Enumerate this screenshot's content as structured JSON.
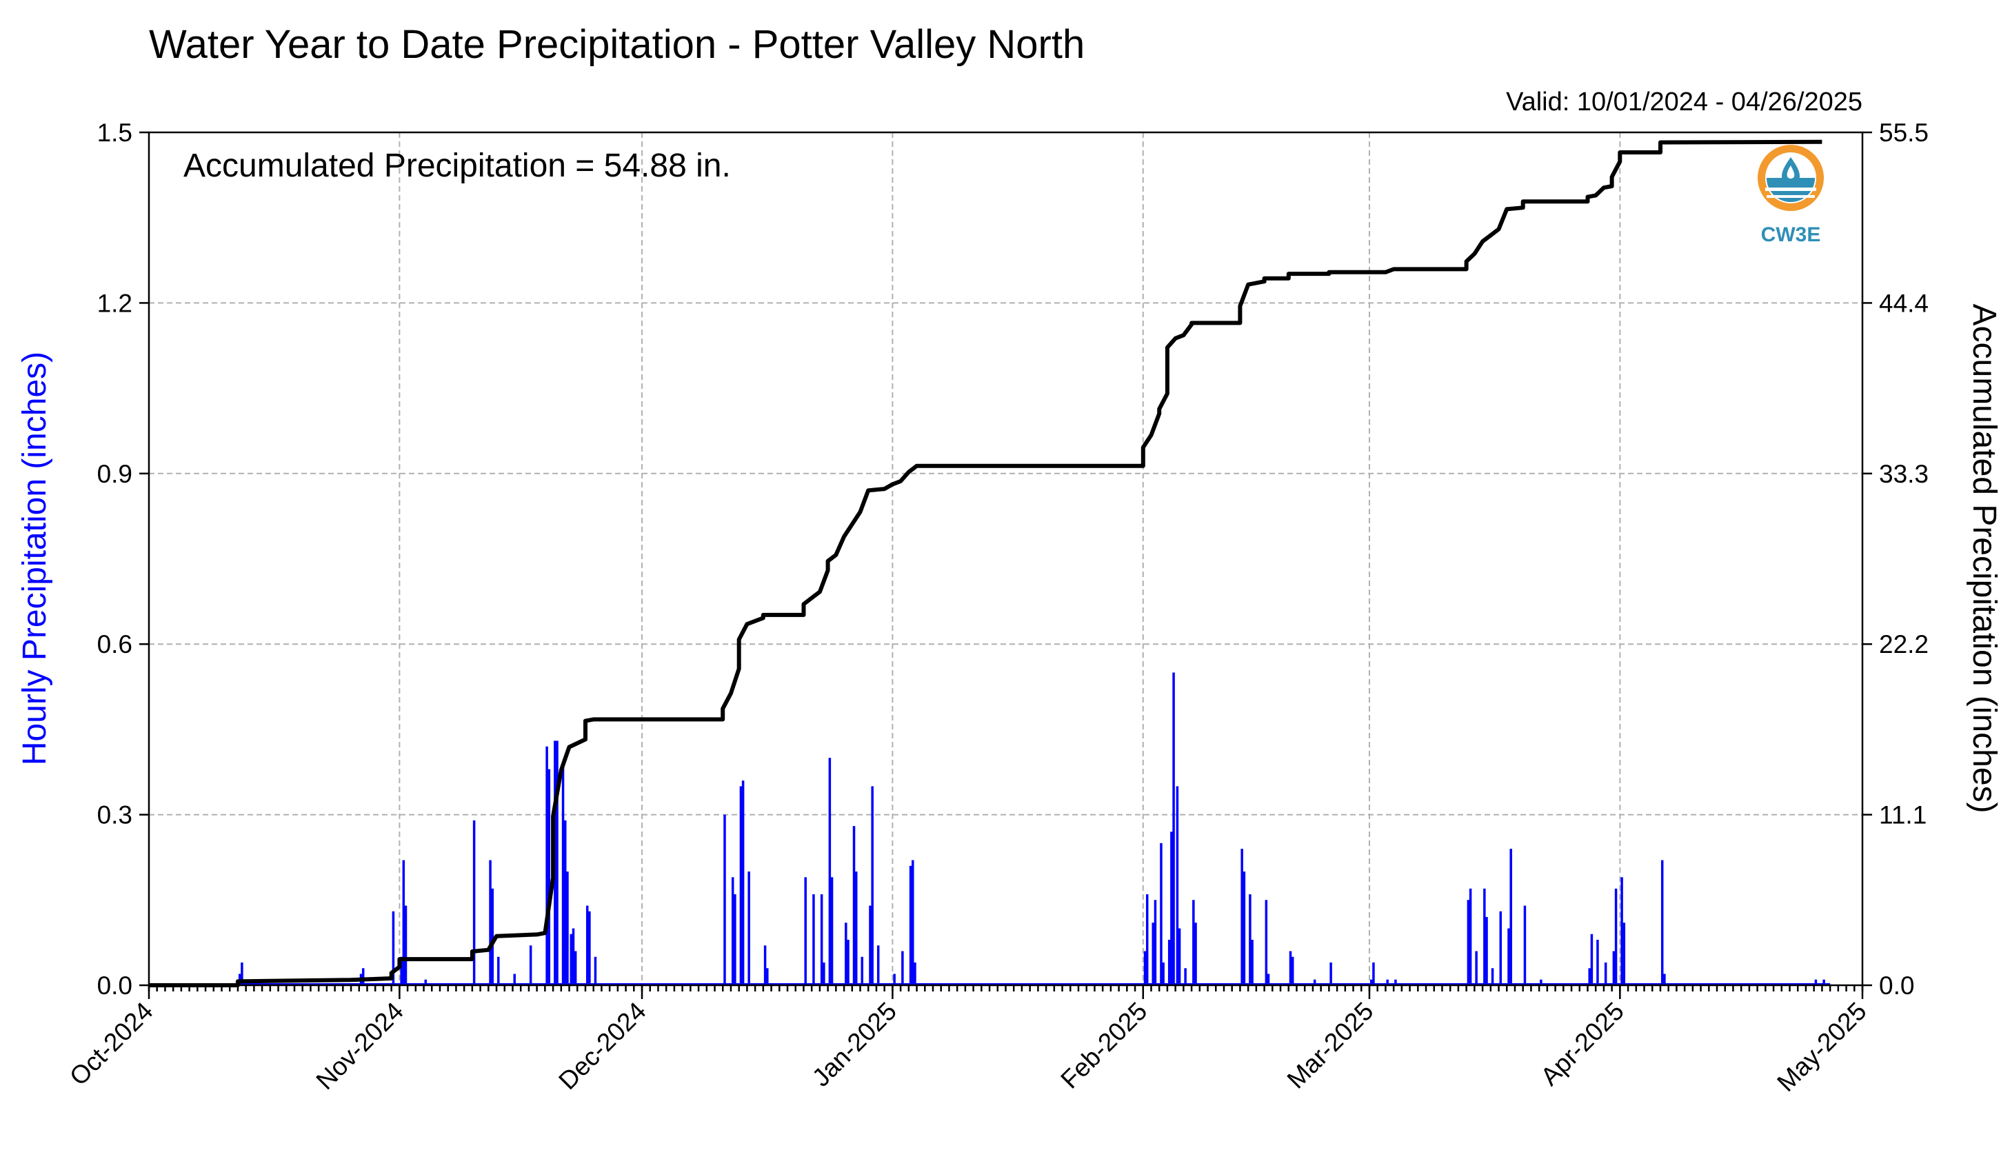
{
  "title": "Water Year to Date Precipitation - Potter Valley North",
  "valid": "Valid: 10/01/2024 - 04/26/2025",
  "annotation": "Accumulated Precipitation = 54.88 in.",
  "logo": {
    "text": "CW3E",
    "icon": "cw3e-logo-icon",
    "color": "#2f8fb6",
    "accent": "#f29a2e"
  },
  "colors": {
    "bars": "#0000ff",
    "line": "#000000",
    "left_axis_label": "#0000ff"
  },
  "chart_data": {
    "type": "bar",
    "title": "Water Year to Date Precipitation - Potter Valley North",
    "xlabel": "",
    "ylabel_left": "Hourly Precipitation (inches)",
    "ylabel_right": "Accumulated Precipitation (inches)",
    "x_range": [
      "2024-10-01",
      "2025-05-01"
    ],
    "x_ticks": [
      "Oct-2024",
      "Nov-2024",
      "Dec-2024",
      "Jan-2025",
      "Feb-2025",
      "Mar-2025",
      "Apr-2025",
      "May-2025"
    ],
    "x_tick_dates": [
      "2024-10-01",
      "2024-11-01",
      "2024-12-01",
      "2025-01-01",
      "2025-02-01",
      "2025-03-01",
      "2025-04-01",
      "2025-05-01"
    ],
    "ylim_left": [
      0,
      1.5
    ],
    "yticks_left": [
      "0.0",
      "0.3",
      "0.6",
      "0.9",
      "1.2",
      "1.5"
    ],
    "ylim_right": [
      0,
      55.5
    ],
    "yticks_right": [
      "0.0",
      "11.1",
      "22.2",
      "33.3",
      "44.4",
      "55.5"
    ],
    "grid": true,
    "series": [
      {
        "name": "Hourly Precipitation",
        "kind": "bar",
        "axis": "left",
        "points": [
          [
            "2024-10-12",
            0.02
          ],
          [
            "2024-10-12",
            0.04
          ],
          [
            "2024-10-27",
            0.02
          ],
          [
            "2024-10-27",
            0.03
          ],
          [
            "2024-10-31",
            0.13
          ],
          [
            "2024-11-01",
            0.05
          ],
          [
            "2024-11-01",
            0.22
          ],
          [
            "2024-11-01",
            0.14
          ],
          [
            "2024-11-04",
            0.01
          ],
          [
            "2024-11-10",
            0.29
          ],
          [
            "2024-11-12",
            0.22
          ],
          [
            "2024-11-12",
            0.17
          ],
          [
            "2024-11-13",
            0.05
          ],
          [
            "2024-11-15",
            0.02
          ],
          [
            "2024-11-17",
            0.07
          ],
          [
            "2024-11-19",
            0.42
          ],
          [
            "2024-11-19",
            0.38
          ],
          [
            "2024-11-20",
            0.43
          ],
          [
            "2024-11-20",
            0.43
          ],
          [
            "2024-11-21",
            0.39
          ],
          [
            "2024-11-21",
            0.29
          ],
          [
            "2024-11-21",
            0.2
          ],
          [
            "2024-11-22",
            0.09
          ],
          [
            "2024-11-22",
            0.1
          ],
          [
            "2024-11-22",
            0.06
          ],
          [
            "2024-11-24",
            0.14
          ],
          [
            "2024-11-24",
            0.13
          ],
          [
            "2024-11-25",
            0.05
          ],
          [
            "2024-12-11",
            0.3
          ],
          [
            "2024-12-12",
            0.19
          ],
          [
            "2024-12-12",
            0.16
          ],
          [
            "2024-12-13",
            0.35
          ],
          [
            "2024-12-13",
            0.36
          ],
          [
            "2024-12-14",
            0.2
          ],
          [
            "2024-12-16",
            0.07
          ],
          [
            "2024-12-16",
            0.03
          ],
          [
            "2024-12-21",
            0.19
          ],
          [
            "2024-12-22",
            0.16
          ],
          [
            "2024-12-23",
            0.16
          ],
          [
            "2024-12-23",
            0.04
          ],
          [
            "2024-12-24",
            0.4
          ],
          [
            "2024-12-24",
            0.19
          ],
          [
            "2024-12-26",
            0.11
          ],
          [
            "2024-12-26",
            0.08
          ],
          [
            "2024-12-27",
            0.28
          ],
          [
            "2024-12-27",
            0.2
          ],
          [
            "2024-12-28",
            0.05
          ],
          [
            "2024-12-29",
            0.14
          ],
          [
            "2024-12-29",
            0.35
          ],
          [
            "2024-12-30",
            0.07
          ],
          [
            "2025-01-01",
            0.02
          ],
          [
            "2025-01-02",
            0.06
          ],
          [
            "2025-01-03",
            0.21
          ],
          [
            "2025-01-03",
            0.22
          ],
          [
            "2025-01-03",
            0.04
          ],
          [
            "2025-02-01",
            0.06
          ],
          [
            "2025-02-01",
            0.16
          ],
          [
            "2025-02-02",
            0.11
          ],
          [
            "2025-02-02",
            0.15
          ],
          [
            "2025-02-03",
            0.25
          ],
          [
            "2025-02-03",
            0.04
          ],
          [
            "2025-02-04",
            0.08
          ],
          [
            "2025-02-04",
            0.27
          ],
          [
            "2025-02-04",
            0.55
          ],
          [
            "2025-02-05",
            0.35
          ],
          [
            "2025-02-05",
            0.1
          ],
          [
            "2025-02-06",
            0.03
          ],
          [
            "2025-02-07",
            0.15
          ],
          [
            "2025-02-07",
            0.11
          ],
          [
            "2025-02-13",
            0.24
          ],
          [
            "2025-02-13",
            0.2
          ],
          [
            "2025-02-14",
            0.16
          ],
          [
            "2025-02-14",
            0.08
          ],
          [
            "2025-02-16",
            0.15
          ],
          [
            "2025-02-16",
            0.02
          ],
          [
            "2025-02-19",
            0.06
          ],
          [
            "2025-02-19",
            0.05
          ],
          [
            "2025-02-22",
            0.01
          ],
          [
            "2025-02-24",
            0.04
          ],
          [
            "2025-03-01",
            0.01
          ],
          [
            "2025-03-01",
            0.04
          ],
          [
            "2025-03-03",
            0.01
          ],
          [
            "2025-03-04",
            0.01
          ],
          [
            "2025-03-13",
            0.15
          ],
          [
            "2025-03-13",
            0.17
          ],
          [
            "2025-03-14",
            0.06
          ],
          [
            "2025-03-15",
            0.17
          ],
          [
            "2025-03-15",
            0.12
          ],
          [
            "2025-03-16",
            0.03
          ],
          [
            "2025-03-17",
            0.13
          ],
          [
            "2025-03-18",
            0.1
          ],
          [
            "2025-03-18",
            0.24
          ],
          [
            "2025-03-20",
            0.14
          ],
          [
            "2025-03-22",
            0.01
          ],
          [
            "2025-03-28",
            0.03
          ],
          [
            "2025-03-28",
            0.09
          ],
          [
            "2025-03-29",
            0.08
          ],
          [
            "2025-03-30",
            0.04
          ],
          [
            "2025-03-31",
            0.06
          ],
          [
            "2025-03-31",
            0.17
          ],
          [
            "2025-04-01",
            0.19
          ],
          [
            "2025-04-01",
            0.11
          ],
          [
            "2025-04-06",
            0.22
          ],
          [
            "2025-04-06",
            0.02
          ],
          [
            "2025-04-25",
            0.01
          ],
          [
            "2025-04-26",
            0.01
          ]
        ]
      },
      {
        "name": "Accumulated Precipitation",
        "kind": "line",
        "axis": "right",
        "points": [
          [
            "2024-10-01",
            0.0
          ],
          [
            "2024-10-12",
            0.0
          ],
          [
            "2024-10-12",
            0.25
          ],
          [
            "2024-10-26",
            0.35
          ],
          [
            "2024-10-31",
            0.45
          ],
          [
            "2024-10-31",
            0.8
          ],
          [
            "2024-11-01",
            1.2
          ],
          [
            "2024-11-01",
            1.7
          ],
          [
            "2024-11-10",
            1.7
          ],
          [
            "2024-11-10",
            2.2
          ],
          [
            "2024-11-12",
            2.3
          ],
          [
            "2024-11-13",
            3.2
          ],
          [
            "2024-11-18",
            3.3
          ],
          [
            "2024-11-19",
            3.4
          ],
          [
            "2024-11-20",
            7.0
          ],
          [
            "2024-11-20",
            11.0
          ],
          [
            "2024-11-21",
            14.0
          ],
          [
            "2024-11-22",
            15.5
          ],
          [
            "2024-11-24",
            16.0
          ],
          [
            "2024-11-24",
            17.2
          ],
          [
            "2024-11-25",
            17.3
          ],
          [
            "2024-12-11",
            17.3
          ],
          [
            "2024-12-11",
            18.0
          ],
          [
            "2024-12-12",
            19.0
          ],
          [
            "2024-12-13",
            20.6
          ],
          [
            "2024-12-13",
            22.5
          ],
          [
            "2024-12-14",
            23.5
          ],
          [
            "2024-12-16",
            23.9
          ],
          [
            "2024-12-16",
            24.1
          ],
          [
            "2024-12-21",
            24.1
          ],
          [
            "2024-12-21",
            24.8
          ],
          [
            "2024-12-22",
            25.2
          ],
          [
            "2024-12-23",
            25.6
          ],
          [
            "2024-12-24",
            27.0
          ],
          [
            "2024-12-24",
            27.6
          ],
          [
            "2024-12-25",
            28.0
          ],
          [
            "2024-12-26",
            29.2
          ],
          [
            "2024-12-27",
            30.0
          ],
          [
            "2024-12-28",
            30.8
          ],
          [
            "2024-12-29",
            32.2
          ],
          [
            "2024-12-31",
            32.3
          ],
          [
            "2025-01-01",
            32.6
          ],
          [
            "2025-01-02",
            32.8
          ],
          [
            "2025-01-03",
            33.4
          ],
          [
            "2025-01-04",
            33.8
          ],
          [
            "2025-01-31",
            33.8
          ],
          [
            "2025-02-01",
            33.8
          ],
          [
            "2025-02-01",
            35.0
          ],
          [
            "2025-02-02",
            35.8
          ],
          [
            "2025-02-03",
            37.2
          ],
          [
            "2025-02-03",
            37.5
          ],
          [
            "2025-02-04",
            38.5
          ],
          [
            "2025-02-04",
            41.5
          ],
          [
            "2025-02-05",
            42.1
          ],
          [
            "2025-02-06",
            42.3
          ],
          [
            "2025-02-07",
            43.0
          ],
          [
            "2025-02-07",
            43.1
          ],
          [
            "2025-02-13",
            43.1
          ],
          [
            "2025-02-13",
            44.2
          ],
          [
            "2025-02-14",
            45.6
          ],
          [
            "2025-02-16",
            45.8
          ],
          [
            "2025-02-16",
            46.0
          ],
          [
            "2025-02-19",
            46.0
          ],
          [
            "2025-02-19",
            46.3
          ],
          [
            "2025-02-24",
            46.3
          ],
          [
            "2025-02-24",
            46.4
          ],
          [
            "2025-03-03",
            46.4
          ],
          [
            "2025-03-04",
            46.6
          ],
          [
            "2025-03-13",
            46.6
          ],
          [
            "2025-03-13",
            47.1
          ],
          [
            "2025-03-14",
            47.6
          ],
          [
            "2025-03-15",
            48.4
          ],
          [
            "2025-03-16",
            48.8
          ],
          [
            "2025-03-17",
            49.2
          ],
          [
            "2025-03-18",
            50.5
          ],
          [
            "2025-03-20",
            50.6
          ],
          [
            "2025-03-20",
            51.0
          ],
          [
            "2025-03-28",
            51.0
          ],
          [
            "2025-03-28",
            51.3
          ],
          [
            "2025-03-29",
            51.4
          ],
          [
            "2025-03-30",
            51.9
          ],
          [
            "2025-03-31",
            52.0
          ],
          [
            "2025-03-31",
            52.6
          ],
          [
            "2025-04-01",
            53.6
          ],
          [
            "2025-04-01",
            54.2
          ],
          [
            "2025-04-06",
            54.2
          ],
          [
            "2025-04-06",
            54.85
          ],
          [
            "2025-04-26",
            54.88
          ]
        ]
      }
    ]
  }
}
